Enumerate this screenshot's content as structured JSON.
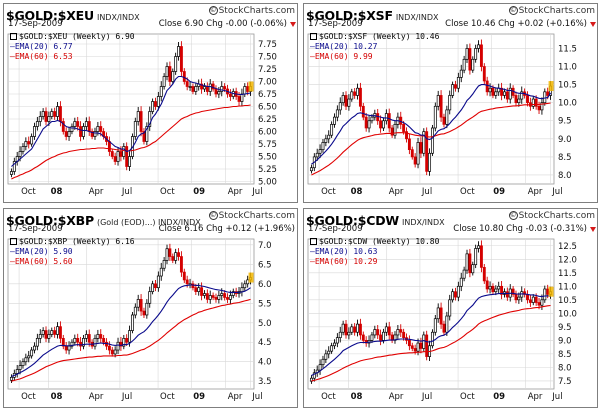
{
  "colors": {
    "up_candle": "#000000",
    "down_candle": "#d40000",
    "ema20": "#0a0a8c",
    "ema60": "#e00000",
    "grid": "#d8d8d8",
    "highlight": "#f2b600",
    "down_arrow": "#d61a1a"
  },
  "icons": {
    "brand": "copyright-icon",
    "change_direction": "down-triangle-icon",
    "legend_marker": "candlestick-icon"
  },
  "x_ticks": [
    "Oct",
    "08",
    "Apr",
    "Jul",
    "Oct",
    "09",
    "Apr",
    "Jul"
  ],
  "panels": [
    {
      "symbol": "$GOLD:$XEU",
      "suffix": "INDX/INDX",
      "brand": "StockCharts.com",
      "date": "17-Sep-2009",
      "quote": "Close 6.90  Chg -0.00 (-0.06%)",
      "legend": {
        "main": "$GOLD:$XEU (Weekly) 6.90",
        "ema20": "EMA(20) 6.77",
        "ema60": "EMA(60) 6.53"
      }
    },
    {
      "symbol": "$GOLD:$XSF",
      "suffix": "INDX/INDX",
      "brand": "StockCharts.com",
      "date": "17-Sep-2009",
      "quote": "Close 10.46  Chg +0.02 (+0.16%)",
      "legend": {
        "main": "$GOLD:$XSF (Weekly) 10.46",
        "ema20": "EMA(20) 10.27",
        "ema60": "EMA(60) 9.99"
      }
    },
    {
      "symbol": "$GOLD:$XBP",
      "suffix": "(Gold (EOD)...) INDX/INDX",
      "brand": "StockCharts.com",
      "date": "17-Sep-2009",
      "quote": "Close 6.16  Chg +0.12 (+1.96%)",
      "legend": {
        "main": "$GOLD:$XBP (Weekly) 6.16",
        "ema20": "EMA(20) 5.90",
        "ema60": "EMA(60) 5.60"
      }
    },
    {
      "symbol": "$GOLD:$CDW",
      "suffix": "INDX/INDX",
      "brand": "StockCharts.com",
      "date": "17-Sep-2009",
      "quote": "Close 10.80  Chg -0.03 (-0.31%)",
      "legend": {
        "main": "$GOLD:$CDW (Weekly) 10.80",
        "ema20": "EMA(20) 10.63",
        "ema60": "EMA(60) 10.29"
      }
    }
  ],
  "chart_data": [
    {
      "type": "candlestick",
      "title": "$GOLD:$XEU",
      "x_ticks": [
        "Oct",
        "08",
        "Apr",
        "Jul",
        "Oct",
        "09",
        "Apr",
        "Jul"
      ],
      "y_ticks": [
        "7.75",
        "7.50",
        "7.25",
        "7.00",
        "6.75",
        "6.50",
        "6.25",
        "6.00",
        "5.75",
        "5.50",
        "5.25",
        "5.00"
      ],
      "ylim": [
        4.95,
        7.95
      ],
      "close": [
        5.2,
        5.4,
        5.5,
        5.6,
        5.7,
        5.8,
        5.75,
        5.9,
        6.1,
        6.2,
        6.3,
        6.4,
        6.2,
        6.3,
        6.4,
        6.3,
        6.5,
        6.2,
        6.0,
        5.9,
        6.0,
        6.1,
        6.2,
        6.1,
        5.9,
        6.1,
        6.2,
        6.0,
        5.9,
        6.0,
        6.1,
        6.0,
        5.9,
        5.8,
        5.6,
        5.5,
        5.4,
        5.6,
        5.5,
        5.7,
        5.3,
        5.5,
        5.9,
        6.2,
        6.4,
        6.0,
        5.8,
        6.1,
        6.4,
        6.6,
        6.5,
        6.7,
        6.9,
        7.1,
        7.3,
        7.0,
        7.2,
        7.5,
        7.7,
        7.2,
        7.0,
        6.9,
        6.9,
        6.8,
        6.9,
        6.95,
        6.85,
        6.9,
        6.8,
        6.95,
        6.85,
        6.75,
        6.8,
        6.9,
        6.85,
        6.75,
        6.7,
        6.8,
        6.7,
        6.6,
        6.75,
        6.9,
        6.8,
        6.9
      ],
      "ema20": [
        5.3,
        5.35,
        5.4,
        5.45,
        5.5,
        5.55,
        5.6,
        5.65,
        5.75,
        5.85,
        5.95,
        6.05,
        6.1,
        6.15,
        6.2,
        6.2,
        6.22,
        6.2,
        6.15,
        6.1,
        6.08,
        6.07,
        6.07,
        6.05,
        6.03,
        6.02,
        6.02,
        6.0,
        5.98,
        5.97,
        5.97,
        5.95,
        5.9,
        5.85,
        5.8,
        5.75,
        5.7,
        5.68,
        5.65,
        5.65,
        5.6,
        5.62,
        5.68,
        5.78,
        5.9,
        5.95,
        5.97,
        6.05,
        6.15,
        6.28,
        6.35,
        6.45,
        6.55,
        6.68,
        6.82,
        6.88,
        6.95,
        7.05,
        7.1,
        7.1,
        7.08,
        7.05,
        7.0,
        6.98,
        6.97,
        6.95,
        6.93,
        6.92,
        6.9,
        6.9,
        6.88,
        6.86,
        6.84,
        6.83,
        6.82,
        6.8,
        6.78,
        6.76,
        6.75,
        6.74,
        6.74,
        6.75,
        6.76,
        6.77
      ],
      "ema60": [
        5.05,
        5.08,
        5.1,
        5.13,
        5.15,
        5.18,
        5.2,
        5.23,
        5.27,
        5.3,
        5.34,
        5.38,
        5.42,
        5.45,
        5.48,
        5.5,
        5.53,
        5.55,
        5.57,
        5.58,
        5.6,
        5.61,
        5.62,
        5.63,
        5.64,
        5.64,
        5.65,
        5.65,
        5.66,
        5.66,
        5.67,
        5.67,
        5.67,
        5.66,
        5.66,
        5.65,
        5.64,
        5.63,
        5.63,
        5.62,
        5.61,
        5.61,
        5.62,
        5.63,
        5.65,
        5.67,
        5.68,
        5.7,
        5.73,
        5.77,
        5.8,
        5.85,
        5.9,
        5.95,
        6.0,
        6.05,
        6.1,
        6.15,
        6.2,
        6.25,
        6.28,
        6.3,
        6.33,
        6.35,
        6.37,
        6.38,
        6.4,
        6.41,
        6.42,
        6.43,
        6.44,
        6.45,
        6.46,
        6.47,
        6.48,
        6.48,
        6.49,
        6.5,
        6.5,
        6.51,
        6.51,
        6.52,
        6.52,
        6.53
      ]
    },
    {
      "type": "candlestick",
      "title": "$GOLD:$XSF",
      "x_ticks": [
        "Oct",
        "08",
        "Apr",
        "Jul",
        "Oct",
        "09",
        "Apr",
        "Jul"
      ],
      "y_ticks": [
        "11.5",
        "11.0",
        "10.5",
        "10.0",
        "9.5",
        "9.0",
        "8.5",
        "8.0"
      ],
      "ylim": [
        7.75,
        11.9
      ],
      "close": [
        8.2,
        8.5,
        8.6,
        8.7,
        8.9,
        9.0,
        9.1,
        9.4,
        9.6,
        9.8,
        10.0,
        10.2,
        9.9,
        10.1,
        10.3,
        10.2,
        10.4,
        9.9,
        9.6,
        9.3,
        9.5,
        9.6,
        9.7,
        9.5,
        9.3,
        9.5,
        9.7,
        9.3,
        9.1,
        9.4,
        9.6,
        9.4,
        9.2,
        9.0,
        8.7,
        8.5,
        8.3,
        8.9,
        8.6,
        9.2,
        8.1,
        8.6,
        9.3,
        9.9,
        10.2,
        9.6,
        9.4,
        9.8,
        10.2,
        10.5,
        10.4,
        10.7,
        10.9,
        11.2,
        11.5,
        10.9,
        11.2,
        11.5,
        11.6,
        11.0,
        10.6,
        10.3,
        10.4,
        10.2,
        10.3,
        10.4,
        10.2,
        10.3,
        10.1,
        10.4,
        10.2,
        10.0,
        10.1,
        10.3,
        10.2,
        10.0,
        9.9,
        10.1,
        9.9,
        9.8,
        10.0,
        10.3,
        10.2,
        10.46
      ],
      "ema20": [
        8.3,
        8.35,
        8.42,
        8.5,
        8.58,
        8.66,
        8.75,
        8.85,
        8.97,
        9.1,
        9.22,
        9.35,
        9.42,
        9.5,
        9.58,
        9.63,
        9.7,
        9.72,
        9.7,
        9.67,
        9.65,
        9.64,
        9.64,
        9.62,
        9.6,
        9.58,
        9.58,
        9.56,
        9.52,
        9.5,
        9.5,
        9.48,
        9.45,
        9.4,
        9.33,
        9.25,
        9.17,
        9.15,
        9.1,
        9.1,
        9.0,
        8.98,
        9.02,
        9.12,
        9.22,
        9.26,
        9.28,
        9.34,
        9.42,
        9.52,
        9.6,
        9.7,
        9.8,
        9.92,
        10.06,
        10.14,
        10.24,
        10.36,
        10.46,
        10.5,
        10.5,
        10.48,
        10.46,
        10.43,
        10.41,
        10.4,
        10.38,
        10.37,
        10.34,
        10.34,
        10.32,
        10.28,
        10.26,
        10.26,
        10.25,
        10.22,
        10.19,
        10.18,
        10.15,
        10.12,
        10.11,
        10.13,
        10.14,
        10.27
      ],
      "ema60": [
        8.0,
        8.04,
        8.08,
        8.12,
        8.17,
        8.22,
        8.27,
        8.33,
        8.4,
        8.47,
        8.55,
        8.63,
        8.7,
        8.77,
        8.84,
        8.9,
        8.96,
        9.0,
        9.03,
        9.05,
        9.07,
        9.09,
        9.11,
        9.12,
        9.13,
        9.14,
        9.15,
        9.15,
        9.15,
        9.16,
        9.17,
        9.17,
        9.17,
        9.16,
        9.14,
        9.12,
        9.1,
        9.09,
        9.08,
        9.08,
        9.06,
        9.05,
        9.06,
        9.08,
        9.11,
        9.13,
        9.14,
        9.17,
        9.2,
        9.24,
        9.28,
        9.33,
        9.38,
        9.44,
        9.5,
        9.55,
        9.6,
        9.66,
        9.72,
        9.76,
        9.78,
        9.8,
        9.82,
        9.83,
        9.85,
        9.86,
        9.87,
        9.88,
        9.89,
        9.9,
        9.91,
        9.91,
        9.92,
        9.93,
        9.94,
        9.94,
        9.94,
        9.95,
        9.95,
        9.95,
        9.96,
        9.97,
        9.98,
        9.99
      ]
    },
    {
      "type": "candlestick",
      "title": "$GOLD:$XBP",
      "x_ticks": [
        "Oct",
        "08",
        "Apr",
        "Jul",
        "Oct",
        "09",
        "Apr",
        "Jul"
      ],
      "y_ticks": [
        "7.0",
        "6.5",
        "6.0",
        "5.5",
        "5.0",
        "4.5",
        "4.0",
        "3.5"
      ],
      "ylim": [
        3.3,
        7.15
      ],
      "close": [
        3.6,
        3.7,
        3.8,
        3.9,
        4.0,
        4.1,
        4.15,
        4.3,
        4.4,
        4.6,
        4.7,
        4.8,
        4.6,
        4.7,
        4.8,
        4.7,
        4.9,
        4.6,
        4.4,
        4.3,
        4.4,
        4.5,
        4.6,
        4.5,
        4.4,
        4.6,
        4.7,
        4.5,
        4.4,
        4.6,
        4.7,
        4.6,
        4.5,
        4.4,
        4.3,
        4.2,
        4.3,
        4.5,
        4.4,
        4.6,
        4.5,
        4.8,
        5.2,
        5.4,
        5.6,
        5.3,
        5.2,
        5.5,
        5.8,
        6.0,
        5.9,
        6.2,
        6.4,
        6.6,
        6.9,
        6.7,
        6.6,
        6.8,
        6.7,
        6.3,
        6.1,
        6.0,
        6.0,
        5.9,
        5.8,
        5.9,
        5.7,
        5.75,
        5.6,
        5.7,
        5.65,
        5.6,
        5.7,
        5.75,
        5.65,
        5.6,
        5.7,
        5.8,
        5.75,
        5.8,
        5.9,
        6.0,
        6.1,
        6.16
      ],
      "ema20": [
        3.62,
        3.65,
        3.68,
        3.72,
        3.76,
        3.8,
        3.85,
        3.9,
        3.96,
        4.03,
        4.1,
        4.17,
        4.22,
        4.27,
        4.32,
        4.36,
        4.4,
        4.42,
        4.42,
        4.41,
        4.41,
        4.42,
        4.43,
        4.44,
        4.43,
        4.44,
        4.45,
        4.45,
        4.45,
        4.46,
        4.47,
        4.48,
        4.47,
        4.47,
        4.45,
        4.43,
        4.42,
        4.43,
        4.42,
        4.44,
        4.44,
        4.47,
        4.53,
        4.6,
        4.68,
        4.73,
        4.77,
        4.84,
        4.93,
        5.03,
        5.11,
        5.2,
        5.3,
        5.41,
        5.53,
        5.63,
        5.71,
        5.8,
        5.88,
        5.92,
        5.95,
        5.96,
        5.97,
        5.97,
        5.96,
        5.96,
        5.94,
        5.93,
        5.91,
        5.89,
        5.87,
        5.85,
        5.84,
        5.83,
        5.81,
        5.79,
        5.78,
        5.78,
        5.78,
        5.78,
        5.79,
        5.81,
        5.85,
        5.9
      ],
      "ema60": [
        3.5,
        3.52,
        3.54,
        3.56,
        3.59,
        3.62,
        3.65,
        3.68,
        3.71,
        3.75,
        3.79,
        3.83,
        3.87,
        3.9,
        3.93,
        3.96,
        3.99,
        4.01,
        4.03,
        4.04,
        4.05,
        4.06,
        4.07,
        4.08,
        4.09,
        4.1,
        4.11,
        4.12,
        4.12,
        4.13,
        4.14,
        4.14,
        4.15,
        4.15,
        4.15,
        4.15,
        4.15,
        4.16,
        4.16,
        4.17,
        4.17,
        4.19,
        4.21,
        4.24,
        4.27,
        4.3,
        4.32,
        4.36,
        4.4,
        4.45,
        4.5,
        4.55,
        4.61,
        4.67,
        4.74,
        4.8,
        4.86,
        4.92,
        4.98,
        5.03,
        5.08,
        5.12,
        5.16,
        5.2,
        5.23,
        5.27,
        5.29,
        5.32,
        5.34,
        5.36,
        5.38,
        5.4,
        5.42,
        5.44,
        5.45,
        5.47,
        5.48,
        5.5,
        5.51,
        5.52,
        5.54,
        5.56,
        5.58,
        5.6
      ]
    },
    {
      "type": "candlestick",
      "title": "$GOLD:$CDW",
      "x_ticks": [
        "Oct",
        "08",
        "Apr",
        "Jul",
        "Oct",
        "09",
        "Apr",
        "Jul"
      ],
      "y_ticks": [
        "12.5",
        "12.0",
        "11.5",
        "11.0",
        "10.5",
        "10.0",
        "9.5",
        "9.0",
        "8.5",
        "8.0",
        "7.5"
      ],
      "ylim": [
        7.2,
        12.75
      ],
      "close": [
        7.6,
        7.8,
        7.9,
        8.1,
        8.3,
        8.5,
        8.6,
        8.8,
        8.9,
        9.1,
        9.3,
        9.6,
        9.2,
        9.3,
        9.5,
        9.3,
        9.6,
        9.2,
        9.0,
        8.9,
        9.0,
        9.2,
        9.4,
        9.2,
        9.0,
        9.3,
        9.5,
        9.2,
        9.0,
        9.2,
        9.4,
        9.3,
        9.1,
        9.0,
        8.8,
        8.7,
        8.6,
        8.9,
        8.7,
        9.2,
        8.4,
        8.8,
        9.3,
        9.8,
        10.2,
        9.6,
        9.3,
        9.9,
        10.5,
        10.8,
        10.6,
        11.0,
        11.3,
        11.6,
        12.2,
        11.5,
        11.8,
        12.4,
        12.5,
        11.7,
        11.2,
        10.9,
        11.0,
        10.8,
        10.9,
        11.0,
        10.7,
        10.8,
        10.6,
        10.9,
        10.7,
        10.5,
        10.6,
        10.8,
        10.7,
        10.5,
        10.4,
        10.6,
        10.4,
        10.3,
        10.5,
        10.9,
        10.7,
        10.8
      ],
      "ema20": [
        7.7,
        7.75,
        7.8,
        7.87,
        7.95,
        8.03,
        8.12,
        8.21,
        8.3,
        8.4,
        8.5,
        8.62,
        8.68,
        8.74,
        8.8,
        8.85,
        8.9,
        8.92,
        8.92,
        8.92,
        8.93,
        8.94,
        8.96,
        8.97,
        8.97,
        8.98,
        9.0,
        9.01,
        9.01,
        9.02,
        9.04,
        9.05,
        9.05,
        9.05,
        9.04,
        9.02,
        9.0,
        8.99,
        8.97,
        8.99,
        8.95,
        8.94,
        8.97,
        9.03,
        9.12,
        9.17,
        9.19,
        9.26,
        9.36,
        9.48,
        9.57,
        9.68,
        9.8,
        9.93,
        10.1,
        10.2,
        10.3,
        10.44,
        10.56,
        10.62,
        10.65,
        10.67,
        10.69,
        10.7,
        10.71,
        10.73,
        10.73,
        10.74,
        10.73,
        10.74,
        10.74,
        10.72,
        10.71,
        10.72,
        10.72,
        10.7,
        10.68,
        10.68,
        10.66,
        10.63,
        10.62,
        10.64,
        10.65,
        10.63
      ],
      "ema60": [
        7.5,
        7.52,
        7.55,
        7.58,
        7.62,
        7.66,
        7.7,
        7.75,
        7.8,
        7.85,
        7.91,
        7.97,
        8.02,
        8.07,
        8.12,
        8.16,
        8.2,
        8.24,
        8.27,
        8.29,
        8.31,
        8.33,
        8.36,
        8.38,
        8.39,
        8.41,
        8.43,
        8.45,
        8.46,
        8.48,
        8.5,
        8.51,
        8.52,
        8.53,
        8.54,
        8.54,
        8.55,
        8.56,
        8.56,
        8.58,
        8.58,
        8.59,
        8.61,
        8.65,
        8.69,
        8.72,
        8.74,
        8.78,
        8.84,
        8.9,
        8.95,
        9.02,
        9.09,
        9.17,
        9.26,
        9.33,
        9.41,
        9.5,
        9.6,
        9.67,
        9.72,
        9.76,
        9.81,
        9.85,
        9.89,
        9.93,
        9.96,
        9.99,
        10.02,
        10.05,
        10.07,
        10.09,
        10.11,
        10.14,
        10.16,
        10.17,
        10.18,
        10.2,
        10.21,
        10.22,
        10.24,
        10.26,
        10.28,
        10.29
      ]
    }
  ]
}
